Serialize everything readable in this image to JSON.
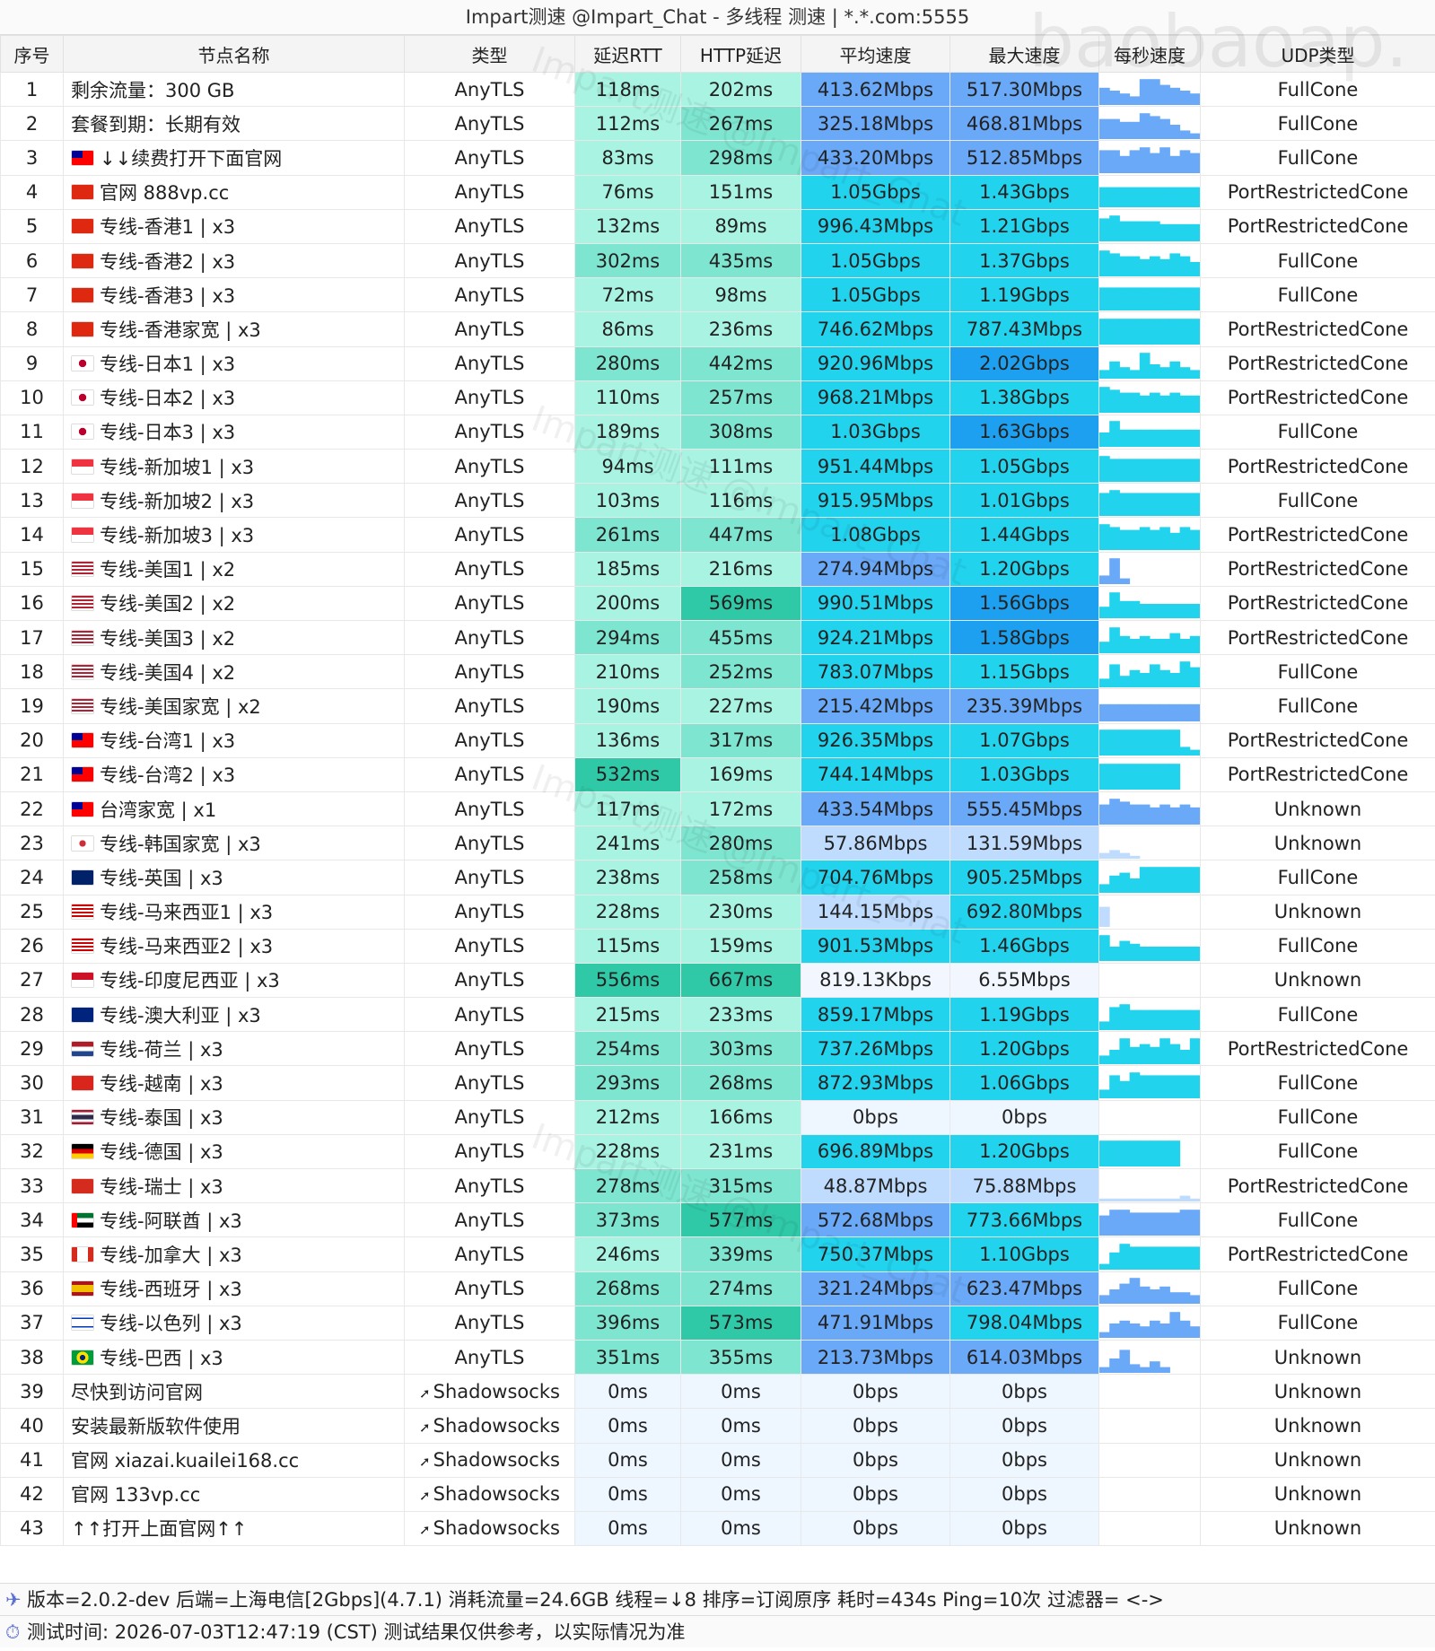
{
  "title": "Impart测速 @Impart_Chat - 多线程 测速 | *.*.com:5555",
  "watermark": "Impart测速 @Impart_Chat",
  "bigmark": "baobaoap.",
  "columns": [
    "序号",
    "节点名称",
    "类型",
    "延迟RTT",
    "HTTP延迟",
    "平均速度",
    "最大速度",
    "每秒速度",
    "UDP类型"
  ],
  "rows": [
    {
      "no": "1",
      "flag": "",
      "name": "剩余流量：300 GB",
      "type": "AnyTLS",
      "rtt": "118ms",
      "http": "202ms",
      "avg": "413.62Mbps",
      "max": "517.30Mbps",
      "udp": "FullCone",
      "spark": [
        0.6,
        0.5,
        0.4,
        0.3,
        0.9,
        0.9,
        0.7,
        0.6,
        0.5,
        0.4
      ]
    },
    {
      "no": "2",
      "flag": "",
      "name": "套餐到期：长期有效",
      "type": "AnyTLS",
      "rtt": "112ms",
      "http": "267ms",
      "avg": "325.18Mbps",
      "max": "468.81Mbps",
      "udp": "FullCone",
      "spark": [
        0.7,
        0.7,
        0.6,
        0.6,
        0.9,
        0.8,
        0.7,
        0.5,
        0.3,
        0.2
      ]
    },
    {
      "no": "3",
      "flag": "tw",
      "name": "↓↓续费打开下面官网",
      "type": "AnyTLS",
      "rtt": "83ms",
      "http": "298ms",
      "avg": "433.20Mbps",
      "max": "512.85Mbps",
      "udp": "FullCone",
      "spark": [
        0.8,
        0.8,
        0.6,
        0.8,
        0.9,
        0.7,
        0.9,
        0.6,
        0.8,
        0.7
      ]
    },
    {
      "no": "4",
      "flag": "hk",
      "name": "官网 888vp.cc",
      "type": "AnyTLS",
      "rtt": "76ms",
      "http": "151ms",
      "avg": "1.05Gbps",
      "max": "1.43Gbps",
      "udp": "PortRestrictedCone",
      "spark": [
        0.7,
        0.7,
        0.7,
        0.7,
        0.7,
        0.7,
        0.7,
        0.7,
        0.7,
        0.7
      ]
    },
    {
      "no": "5",
      "flag": "hk",
      "name": "专线-香港1 | x3",
      "type": "AnyTLS",
      "rtt": "132ms",
      "http": "89ms",
      "avg": "996.43Mbps",
      "max": "1.21Gbps",
      "udp": "PortRestrictedCone",
      "spark": [
        0.8,
        0.9,
        0.7,
        0.7,
        0.7,
        0.7,
        0.6,
        0.6,
        0.6,
        0.6
      ]
    },
    {
      "no": "6",
      "flag": "hk",
      "name": "专线-香港2 | x3",
      "type": "AnyTLS",
      "rtt": "302ms",
      "http": "435ms",
      "avg": "1.05Gbps",
      "max": "1.37Gbps",
      "udp": "FullCone",
      "spark": [
        0.9,
        0.8,
        0.7,
        0.7,
        0.6,
        0.7,
        0.6,
        0.8,
        0.7,
        0.5
      ]
    },
    {
      "no": "7",
      "flag": "hk",
      "name": "专线-香港3 | x3",
      "type": "AnyTLS",
      "rtt": "72ms",
      "http": "98ms",
      "avg": "1.05Gbps",
      "max": "1.19Gbps",
      "udp": "FullCone",
      "spark": [
        0.8,
        0.8,
        0.8,
        0.8,
        0.8,
        0.8,
        0.8,
        0.8,
        0.8,
        0.8
      ]
    },
    {
      "no": "8",
      "flag": "hk",
      "name": "专线-香港家宽 | x3",
      "type": "AnyTLS",
      "rtt": "86ms",
      "http": "236ms",
      "avg": "746.62Mbps",
      "max": "787.43Mbps",
      "udp": "PortRestrictedCone",
      "spark": [
        0.9,
        0.9,
        0.9,
        0.9,
        0.9,
        0.9,
        0.9,
        0.9,
        0.9,
        0.9
      ]
    },
    {
      "no": "9",
      "flag": "jp",
      "name": "专线-日本1 | x3",
      "type": "AnyTLS",
      "rtt": "280ms",
      "http": "442ms",
      "avg": "920.96Mbps",
      "max": "2.02Gbps",
      "udp": "PortRestrictedCone",
      "spark": [
        0.3,
        0.6,
        0.4,
        0.3,
        0.9,
        0.5,
        0.4,
        0.6,
        0.4,
        0.3
      ]
    },
    {
      "no": "10",
      "flag": "jp",
      "name": "专线-日本2 | x3",
      "type": "AnyTLS",
      "rtt": "110ms",
      "http": "257ms",
      "avg": "968.21Mbps",
      "max": "1.38Gbps",
      "udp": "PortRestrictedCone",
      "spark": [
        0.9,
        0.8,
        0.7,
        0.7,
        0.6,
        0.7,
        0.6,
        0.7,
        0.6,
        0.6
      ]
    },
    {
      "no": "11",
      "flag": "jp",
      "name": "专线-日本3 | x3",
      "type": "AnyTLS",
      "rtt": "189ms",
      "http": "308ms",
      "avg": "1.03Gbps",
      "max": "1.63Gbps",
      "udp": "FullCone",
      "spark": [
        0.5,
        0.9,
        0.6,
        0.6,
        0.6,
        0.6,
        0.6,
        0.6,
        0.6,
        0.6
      ]
    },
    {
      "no": "12",
      "flag": "sg",
      "name": "专线-新加坡1 | x3",
      "type": "AnyTLS",
      "rtt": "94ms",
      "http": "111ms",
      "avg": "951.44Mbps",
      "max": "1.05Gbps",
      "udp": "PortRestrictedCone",
      "spark": [
        0.9,
        0.8,
        0.8,
        0.8,
        0.8,
        0.8,
        0.8,
        0.8,
        0.8,
        0.8
      ]
    },
    {
      "no": "13",
      "flag": "sg",
      "name": "专线-新加坡2 | x3",
      "type": "AnyTLS",
      "rtt": "103ms",
      "http": "116ms",
      "avg": "915.95Mbps",
      "max": "1.01Gbps",
      "udp": "FullCone",
      "spark": [
        0.8,
        0.9,
        0.8,
        0.8,
        0.8,
        0.8,
        0.8,
        0.8,
        0.8,
        0.8
      ]
    },
    {
      "no": "14",
      "flag": "sg",
      "name": "专线-新加坡3 | x3",
      "type": "AnyTLS",
      "rtt": "261ms",
      "http": "447ms",
      "avg": "1.08Gbps",
      "max": "1.44Gbps",
      "udp": "PortRestrictedCone",
      "spark": [
        0.9,
        0.8,
        0.7,
        0.7,
        0.8,
        0.7,
        0.8,
        0.6,
        0.8,
        0.7
      ]
    },
    {
      "no": "15",
      "flag": "us",
      "name": "专线-美国1 | x2",
      "type": "AnyTLS",
      "rtt": "185ms",
      "http": "216ms",
      "avg": "274.94Mbps",
      "max": "1.20Gbps",
      "udp": "PortRestrictedCone",
      "spark": [
        0.3,
        0.9,
        0.2,
        0.0,
        0.0,
        0.0,
        0.0,
        0.0,
        0.0,
        0.0
      ]
    },
    {
      "no": "16",
      "flag": "us",
      "name": "专线-美国2 | x2",
      "type": "AnyTLS",
      "rtt": "200ms",
      "http": "569ms",
      "avg": "990.51Mbps",
      "max": "1.56Gbps",
      "udp": "PortRestrictedCone",
      "spark": [
        0.4,
        0.9,
        0.6,
        0.6,
        0.5,
        0.5,
        0.5,
        0.5,
        0.5,
        0.5
      ]
    },
    {
      "no": "17",
      "flag": "us",
      "name": "专线-美国3 | x2",
      "type": "AnyTLS",
      "rtt": "294ms",
      "http": "455ms",
      "avg": "924.21Mbps",
      "max": "1.58Gbps",
      "udp": "PortRestrictedCone",
      "spark": [
        0.4,
        0.9,
        0.6,
        0.5,
        0.6,
        0.5,
        0.5,
        0.7,
        0.5,
        0.6
      ]
    },
    {
      "no": "18",
      "flag": "us",
      "name": "专线-美国4 | x2",
      "type": "AnyTLS",
      "rtt": "210ms",
      "http": "252ms",
      "avg": "783.07Mbps",
      "max": "1.15Gbps",
      "udp": "FullCone",
      "spark": [
        0.3,
        0.8,
        0.4,
        0.6,
        0.5,
        0.8,
        0.6,
        0.5,
        0.9,
        0.7
      ]
    },
    {
      "no": "19",
      "flag": "us",
      "name": "专线-美国家宽 | x2",
      "type": "AnyTLS",
      "rtt": "190ms",
      "http": "227ms",
      "avg": "215.42Mbps",
      "max": "235.39Mbps",
      "udp": "FullCone",
      "spark": [
        0.6,
        0.6,
        0.6,
        0.6,
        0.6,
        0.6,
        0.6,
        0.6,
        0.6,
        0.6
      ]
    },
    {
      "no": "20",
      "flag": "tw",
      "name": "专线-台湾1 | x3",
      "type": "AnyTLS",
      "rtt": "136ms",
      "http": "317ms",
      "avg": "926.35Mbps",
      "max": "1.07Gbps",
      "udp": "PortRestrictedCone",
      "spark": [
        0.9,
        0.9,
        0.9,
        0.9,
        0.9,
        0.9,
        0.9,
        0.9,
        0.3,
        0.2
      ]
    },
    {
      "no": "21",
      "flag": "tw",
      "name": "专线-台湾2 | x3",
      "type": "AnyTLS",
      "rtt": "532ms",
      "http": "169ms",
      "avg": "744.14Mbps",
      "max": "1.03Gbps",
      "udp": "PortRestrictedCone",
      "spark": [
        0.9,
        0.9,
        0.9,
        0.9,
        0.9,
        0.9,
        0.9,
        0.9,
        0.0,
        0.0
      ]
    },
    {
      "no": "22",
      "flag": "tw",
      "name": "台湾家宽 | x1",
      "type": "AnyTLS",
      "rtt": "117ms",
      "http": "172ms",
      "avg": "433.54Mbps",
      "max": "555.45Mbps",
      "udp": "Unknown",
      "spark": [
        0.7,
        0.9,
        0.8,
        0.7,
        0.7,
        0.6,
        0.7,
        0.6,
        0.7,
        0.6
      ]
    },
    {
      "no": "23",
      "flag": "kr",
      "name": "专线-韩国家宽 | x3",
      "type": "AnyTLS",
      "rtt": "241ms",
      "http": "280ms",
      "avg": "57.86Mbps",
      "max": "131.59Mbps",
      "udp": "Unknown",
      "spark": [
        0.2,
        0.3,
        0.2,
        0.1,
        0.0,
        0.0,
        0.0,
        0.0,
        0.0,
        0.0
      ]
    },
    {
      "no": "24",
      "flag": "uk",
      "name": "专线-英国 | x3",
      "type": "AnyTLS",
      "rtt": "238ms",
      "http": "258ms",
      "avg": "704.76Mbps",
      "max": "905.25Mbps",
      "udp": "FullCone",
      "spark": [
        0.3,
        0.6,
        0.7,
        0.5,
        0.9,
        0.9,
        0.9,
        0.9,
        0.9,
        0.9
      ]
    },
    {
      "no": "25",
      "flag": "my",
      "name": "专线-马来西亚1 | x3",
      "type": "AnyTLS",
      "rtt": "228ms",
      "http": "230ms",
      "avg": "144.15Mbps",
      "max": "692.80Mbps",
      "udp": "Unknown",
      "spark": [
        0.7,
        0.0,
        0.0,
        0.0,
        0.0,
        0.0,
        0.0,
        0.0,
        0.0,
        0.0
      ]
    },
    {
      "no": "26",
      "flag": "my",
      "name": "专线-马来西亚2 | x3",
      "type": "AnyTLS",
      "rtt": "115ms",
      "http": "159ms",
      "avg": "901.53Mbps",
      "max": "1.46Gbps",
      "udp": "FullCone",
      "spark": [
        0.9,
        0.5,
        0.7,
        0.6,
        0.5,
        0.5,
        0.5,
        0.5,
        0.5,
        0.5
      ]
    },
    {
      "no": "27",
      "flag": "id",
      "name": "专线-印度尼西亚 | x3",
      "type": "AnyTLS",
      "rtt": "556ms",
      "http": "667ms",
      "avg": "819.13Kbps",
      "max": "6.55Mbps",
      "udp": "Unknown",
      "spark": [
        0,
        0,
        0,
        0,
        0,
        0,
        0,
        0,
        0,
        0
      ]
    },
    {
      "no": "28",
      "flag": "au",
      "name": "专线-澳大利亚 | x3",
      "type": "AnyTLS",
      "rtt": "215ms",
      "http": "233ms",
      "avg": "859.17Mbps",
      "max": "1.19Gbps",
      "udp": "FullCone",
      "spark": [
        0.3,
        0.8,
        0.9,
        0.7,
        0.7,
        0.7,
        0.7,
        0.7,
        0.7,
        0.7
      ]
    },
    {
      "no": "29",
      "flag": "nl",
      "name": "专线-荷兰 | x3",
      "type": "AnyTLS",
      "rtt": "254ms",
      "http": "303ms",
      "avg": "737.26Mbps",
      "max": "1.20Gbps",
      "udp": "PortRestrictedCone",
      "spark": [
        0.3,
        0.5,
        0.9,
        0.6,
        0.7,
        0.6,
        0.9,
        0.7,
        0.5,
        0.9
      ]
    },
    {
      "no": "30",
      "flag": "vn",
      "name": "专线-越南 | x3",
      "type": "AnyTLS",
      "rtt": "293ms",
      "http": "268ms",
      "avg": "872.93Mbps",
      "max": "1.06Gbps",
      "udp": "FullCone",
      "spark": [
        0.3,
        0.8,
        0.6,
        0.9,
        0.8,
        0.8,
        0.8,
        0.8,
        0.8,
        0.8
      ]
    },
    {
      "no": "31",
      "flag": "th",
      "name": "专线-泰国 | x3",
      "type": "AnyTLS",
      "rtt": "212ms",
      "http": "166ms",
      "avg": "0bps",
      "max": "0bps",
      "udp": "FullCone",
      "spark": [
        0,
        0,
        0,
        0,
        0,
        0,
        0,
        0,
        0,
        0
      ]
    },
    {
      "no": "32",
      "flag": "de",
      "name": "专线-德国 | x3",
      "type": "AnyTLS",
      "rtt": "228ms",
      "http": "231ms",
      "avg": "696.89Mbps",
      "max": "1.20Gbps",
      "udp": "FullCone",
      "spark": [
        0.9,
        0.9,
        0.9,
        0.9,
        0.9,
        0.9,
        0.9,
        0.9,
        0.0,
        0.0
      ]
    },
    {
      "no": "33",
      "flag": "ch",
      "name": "专线-瑞士 | x3",
      "type": "AnyTLS",
      "rtt": "278ms",
      "http": "315ms",
      "avg": "48.87Mbps",
      "max": "75.88Mbps",
      "udp": "PortRestrictedCone",
      "spark": [
        0.1,
        0.1,
        0.1,
        0.1,
        0.1,
        0.1,
        0.1,
        0.1,
        0.2,
        0.1
      ]
    },
    {
      "no": "34",
      "flag": "ae",
      "name": "专线-阿联酋 | x3",
      "type": "AnyTLS",
      "rtt": "373ms",
      "http": "577ms",
      "avg": "572.68Mbps",
      "max": "773.66Mbps",
      "udp": "FullCone",
      "spark": [
        0.7,
        0.9,
        0.9,
        0.8,
        0.8,
        0.8,
        0.8,
        0.8,
        0.9,
        0.9
      ]
    },
    {
      "no": "35",
      "flag": "ca",
      "name": "专线-加拿大 | x3",
      "type": "AnyTLS",
      "rtt": "246ms",
      "http": "339ms",
      "avg": "750.37Mbps",
      "max": "1.10Gbps",
      "udp": "PortRestrictedCone",
      "spark": [
        0.2,
        0.6,
        0.9,
        0.8,
        0.8,
        0.8,
        0.8,
        0.8,
        0.8,
        0.8
      ]
    },
    {
      "no": "36",
      "flag": "es",
      "name": "专线-西班牙 | x3",
      "type": "AnyTLS",
      "rtt": "268ms",
      "http": "274ms",
      "avg": "321.24Mbps",
      "max": "623.47Mbps",
      "udp": "FullCone",
      "spark": [
        0.3,
        0.5,
        0.7,
        0.9,
        0.6,
        0.5,
        0.6,
        0.4,
        0.4,
        0.3
      ]
    },
    {
      "no": "37",
      "flag": "il",
      "name": "专线-以色列 | x3",
      "type": "AnyTLS",
      "rtt": "396ms",
      "http": "573ms",
      "avg": "471.91Mbps",
      "max": "798.04Mbps",
      "udp": "FullCone",
      "spark": [
        0.2,
        0.5,
        0.6,
        0.5,
        0.4,
        0.6,
        0.5,
        0.9,
        0.6,
        0.4
      ]
    },
    {
      "no": "38",
      "flag": "br",
      "name": "专线-巴西 | x3",
      "type": "AnyTLS",
      "rtt": "351ms",
      "http": "355ms",
      "avg": "213.73Mbps",
      "max": "614.03Mbps",
      "udp": "Unknown",
      "spark": [
        0.2,
        0.5,
        0.8,
        0.3,
        0.2,
        0.4,
        0.2,
        0.0,
        0.0,
        0.0
      ]
    },
    {
      "no": "39",
      "flag": "",
      "name": "尽快到访问官网",
      "type": "Shadowsocks",
      "rtt": "0ms",
      "http": "0ms",
      "avg": "0bps",
      "max": "0bps",
      "udp": "Unknown",
      "spark": []
    },
    {
      "no": "40",
      "flag": "",
      "name": "安装最新版软件使用",
      "type": "Shadowsocks",
      "rtt": "0ms",
      "http": "0ms",
      "avg": "0bps",
      "max": "0bps",
      "udp": "Unknown",
      "spark": []
    },
    {
      "no": "41",
      "flag": "",
      "name": "官网 xiazai.kuailei168.cc",
      "type": "Shadowsocks",
      "rtt": "0ms",
      "http": "0ms",
      "avg": "0bps",
      "max": "0bps",
      "udp": "Unknown",
      "spark": []
    },
    {
      "no": "42",
      "flag": "",
      "name": "官网 133vp.cc",
      "type": "Shadowsocks",
      "rtt": "0ms",
      "http": "0ms",
      "avg": "0bps",
      "max": "0bps",
      "udp": "Unknown",
      "spark": []
    },
    {
      "no": "43",
      "flag": "",
      "name": "↑↑打开上面官网↑↑",
      "type": "Shadowsocks",
      "rtt": "0ms",
      "http": "0ms",
      "avg": "0bps",
      "max": "0bps",
      "udp": "Unknown",
      "spark": []
    }
  ],
  "footer": {
    "line1": "版本=2.0.2-dev  后端=上海电信[2Gbps](4.7.1) 消耗流量=24.6GB  线程=↓8  排序=订阅原序  耗时=434s  Ping=10次  过滤器= <->",
    "line2": "测试时间: 2026-07-03T12:47:19 (CST)  测试结果仅供参考，以实际情况为准"
  },
  "colors": {
    "latency_low": "#a8f3e2",
    "latency_mid": "#7ee6d0",
    "latency_high": "#30c9a8",
    "speed_low": "#bfdcff",
    "speed_mid": "#6aa8f8",
    "speed_high": "#22d3ee",
    "speed_max": "#1ea0f0",
    "zero": "#eef6ff"
  }
}
